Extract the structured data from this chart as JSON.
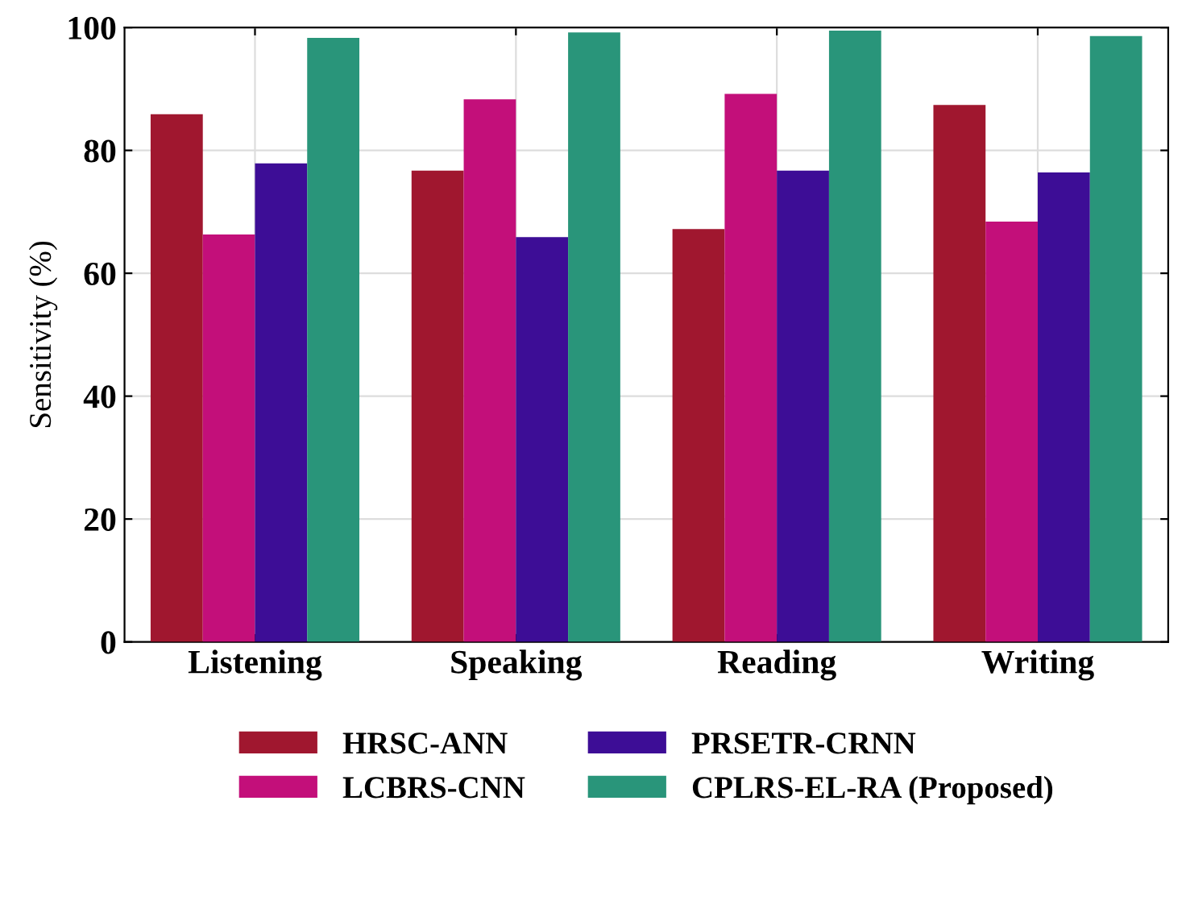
{
  "chart_data": {
    "type": "bar",
    "ylabel": "Sensitivity (%)",
    "categories": [
      "Listening",
      "Speaking",
      "Reading",
      "Writing"
    ],
    "series": [
      {
        "name": "HRSC-ANN",
        "color": "#a0172f",
        "values": [
          85.9,
          76.7,
          67.2,
          87.4
        ]
      },
      {
        "name": "LCBRS-CNN",
        "color": "#c30f7a",
        "values": [
          66.3,
          88.3,
          89.2,
          68.4
        ]
      },
      {
        "name": "PRSETR-CRNN",
        "color": "#3d0d96",
        "values": [
          77.9,
          65.9,
          76.7,
          76.4
        ]
      },
      {
        "name": "CPLRS-EL-RA (Proposed)",
        "color": "#29957a",
        "values": [
          98.3,
          99.2,
          99.5,
          98.6
        ]
      }
    ],
    "ylim": [
      0,
      100
    ],
    "yticks": [
      0,
      20,
      40,
      60,
      80,
      100
    ],
    "grid": true,
    "legend": "bottom"
  }
}
